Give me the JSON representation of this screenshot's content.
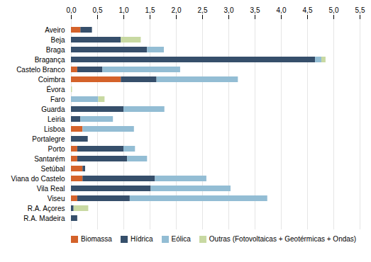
{
  "chart_data": {
    "type": "bar",
    "orientation": "horizontal",
    "stacked": true,
    "categories": [
      "Aveiro",
      "Beja",
      "Braga",
      "Bragança",
      "Castelo Branco",
      "Coimbra",
      "Évora",
      "Faro",
      "Guarda",
      "Leiria",
      "Lisboa",
      "Portalegre",
      "Porto",
      "Santarém",
      "Setúbal",
      "Viana do Castelo",
      "Vila Real",
      "Viseu",
      "R.A. Açores",
      "R.A. Madeira"
    ],
    "series": [
      {
        "name": "Biomassa",
        "color": "#d4622a",
        "values": [
          0.18,
          0.0,
          0.0,
          0.0,
          0.12,
          0.95,
          0.0,
          0.0,
          0.0,
          0.0,
          0.22,
          0.0,
          0.12,
          0.12,
          0.22,
          0.22,
          0.0,
          0.12,
          0.0,
          0.0
        ]
      },
      {
        "name": "Hídrica",
        "color": "#364f6b",
        "values": [
          0.22,
          0.95,
          1.45,
          4.65,
          0.48,
          0.68,
          0.0,
          0.0,
          1.0,
          0.18,
          0.0,
          0.32,
          0.88,
          0.95,
          0.05,
          1.38,
          1.52,
          1.0,
          0.05,
          0.12
        ]
      },
      {
        "name": "Eólica",
        "color": "#93bdd4",
        "values": [
          0.0,
          0.0,
          0.32,
          0.12,
          1.48,
          1.55,
          0.0,
          0.52,
          0.78,
          0.62,
          0.98,
          0.0,
          0.22,
          0.38,
          0.0,
          0.98,
          1.52,
          2.62,
          0.0,
          0.0
        ]
      },
      {
        "name": "Outras (Fotovoltaicas + Geotérmicas + Ondas)",
        "color": "#c8d9a2",
        "values": [
          0.0,
          0.38,
          0.0,
          0.08,
          0.0,
          0.0,
          0.02,
          0.12,
          0.0,
          0.0,
          0.0,
          0.0,
          0.0,
          0.0,
          0.0,
          0.0,
          0.0,
          0.0,
          0.28,
          0.0
        ]
      }
    ],
    "xlim": [
      0,
      5.5
    ],
    "xticks": [
      {
        "value": 0.0,
        "label": "0,0"
      },
      {
        "value": 0.5,
        "label": "0,5"
      },
      {
        "value": 1.0,
        "label": "1,0"
      },
      {
        "value": 1.5,
        "label": "1,5"
      },
      {
        "value": 2.0,
        "label": "2,0"
      },
      {
        "value": 2.5,
        "label": "2,5"
      },
      {
        "value": 3.0,
        "label": "3,0"
      },
      {
        "value": 3.5,
        "label": "3,5"
      },
      {
        "value": 4.0,
        "label": "4,0"
      },
      {
        "value": 4.5,
        "label": "4,5"
      },
      {
        "value": 5.0,
        "label": "5,0"
      },
      {
        "value": 5.5,
        "label": "5,5"
      }
    ],
    "grid": true,
    "legend": "lower left"
  }
}
